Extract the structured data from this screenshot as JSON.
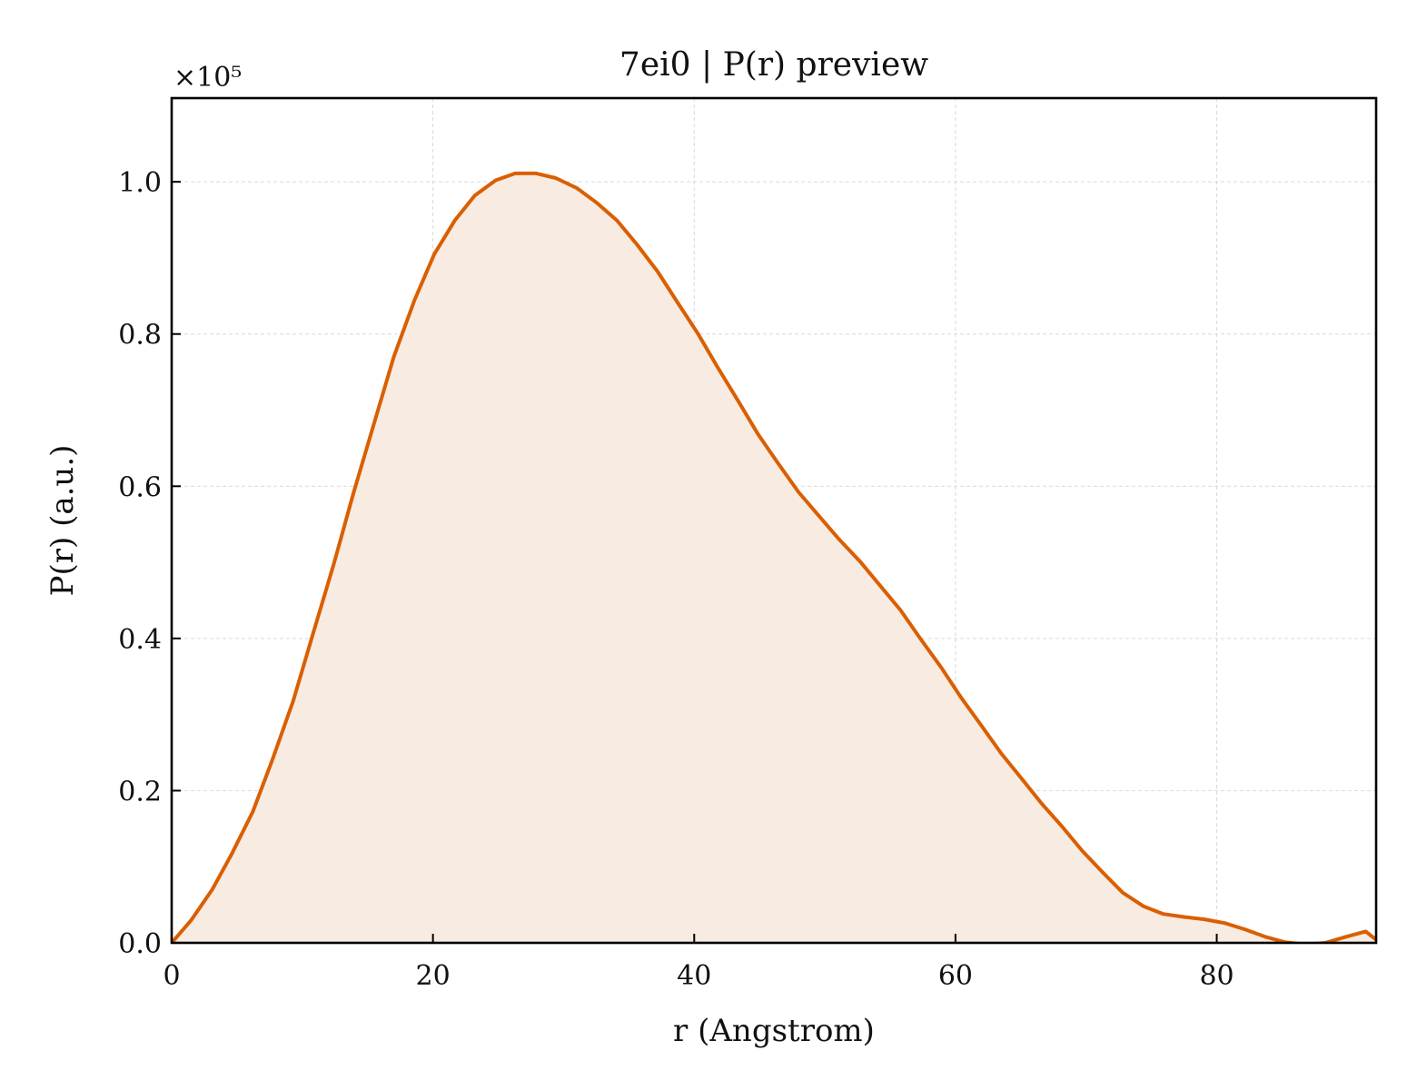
{
  "chart_data": {
    "type": "area",
    "title": "7ei0 | P(r) preview",
    "xlabel": "r (Angstrom)",
    "ylabel": "P(r) (a.u.)",
    "offset_text": "×10⁵",
    "y_scale_factor": 100000,
    "xlim": [
      0,
      92.2
    ],
    "ylim": [
      0,
      1.11
    ],
    "x_ticks": [
      0,
      20,
      40,
      60,
      80
    ],
    "x_tick_labels": [
      "0",
      "20",
      "40",
      "60",
      "80"
    ],
    "y_ticks": [
      0,
      0.2,
      0.4,
      0.6,
      0.8,
      1.0
    ],
    "y_tick_labels": [
      "0.0",
      "0.2",
      "0.4",
      "0.6",
      "0.8",
      "1.0"
    ],
    "grid": true,
    "line_color": "#d95f02",
    "fill_color": "#f8ebe1",
    "series": [
      {
        "x": [
          0,
          1.5,
          3.1,
          4.6,
          6.2,
          7.7,
          9.3,
          10.8,
          12.4,
          13.9,
          15.5,
          17.0,
          18.6,
          20.1,
          21.7,
          23.2,
          24.8,
          26.3,
          27.9,
          29.4,
          31.0,
          32.5,
          34.1,
          35.6,
          37.2,
          38.7,
          40.3,
          41.8,
          43.4,
          44.9,
          46.5,
          48.0,
          49.6,
          51.1,
          52.7,
          54.2,
          55.8,
          57.3,
          58.9,
          60.4,
          62.0,
          63.5,
          65.1,
          66.6,
          68.2,
          69.7,
          71.3,
          72.8,
          74.4,
          75.9,
          77.5,
          79.0,
          80.6,
          82.1,
          83.7,
          85.2,
          86.8,
          88.3,
          89.9,
          91.4,
          92.2
        ],
        "y": [
          0,
          0.03,
          0.07,
          0.117,
          0.172,
          0.24,
          0.318,
          0.405,
          0.497,
          0.59,
          0.683,
          0.77,
          0.845,
          0.905,
          0.95,
          0.982,
          1.002,
          1.011,
          1.011,
          1.005,
          0.992,
          0.973,
          0.949,
          0.918,
          0.882,
          0.842,
          0.8,
          0.756,
          0.711,
          0.668,
          0.628,
          0.592,
          0.56,
          0.53,
          0.501,
          0.47,
          0.437,
          0.4,
          0.362,
          0.323,
          0.285,
          0.249,
          0.215,
          0.183,
          0.152,
          0.121,
          0.092,
          0.066,
          0.048,
          0.038,
          0.034,
          0.031,
          0.026,
          0.018,
          0.008,
          0.001,
          -0.002,
          0.0,
          0.008,
          0.015,
          0.004
        ]
      }
    ]
  }
}
